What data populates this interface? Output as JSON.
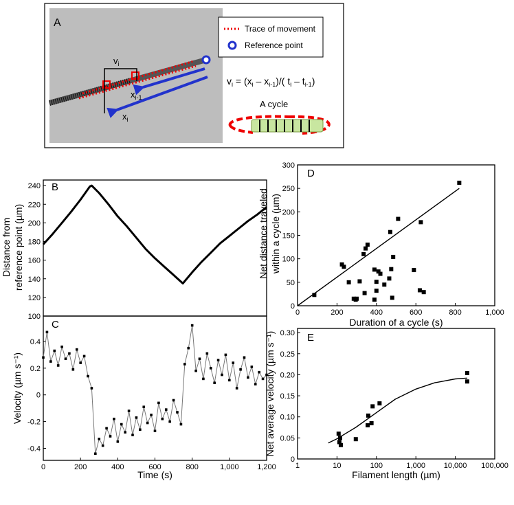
{
  "panel_a": {
    "label": "A",
    "legend": [
      "Trace of movement",
      "Reference point"
    ],
    "equation": [
      "v",
      "i",
      " = (x",
      "i",
      " – x",
      "i-1",
      ")/( t",
      "i",
      " – t",
      "i-1",
      ")"
    ],
    "cycle_label": "A cycle",
    "v_label": [
      "v",
      "i"
    ],
    "x_prev_label": [
      "x",
      "i-1"
    ],
    "x_label": [
      "x",
      "i"
    ]
  },
  "chart_data": [
    {
      "type": "line",
      "panel": "B",
      "ylabel": [
        "Distance from",
        "reference point (µm)"
      ],
      "color": "#000000",
      "x": [
        0,
        50,
        100,
        150,
        200,
        250,
        260,
        300,
        350,
        400,
        450,
        500,
        550,
        600,
        650,
        700,
        750,
        800,
        850,
        900,
        950,
        1000,
        1050,
        1100,
        1150,
        1200
      ],
      "values": [
        177,
        188,
        200,
        212,
        225,
        239,
        240,
        232,
        220,
        207,
        196,
        184,
        172,
        162,
        153,
        144,
        135,
        147,
        158,
        168,
        178,
        186,
        194,
        202,
        209,
        217
      ],
      "xlim": [
        0,
        1200
      ],
      "ylim": [
        100,
        246
      ],
      "yticks": [
        100,
        120,
        140,
        160,
        180,
        200,
        220,
        240
      ]
    },
    {
      "type": "line",
      "panel": "C",
      "markers": true,
      "ylabel": [
        "Velocity (µm s⁻¹)"
      ],
      "xlabel": "Time (s)",
      "color": "#777777",
      "marker_color": "#000000",
      "x": [
        0,
        20,
        40,
        60,
        80,
        100,
        120,
        140,
        160,
        180,
        200,
        220,
        240,
        260,
        280,
        300,
        320,
        340,
        360,
        380,
        400,
        420,
        440,
        460,
        480,
        500,
        520,
        540,
        560,
        580,
        600,
        620,
        640,
        660,
        680,
        700,
        720,
        740,
        760,
        780,
        800,
        820,
        840,
        860,
        880,
        900,
        920,
        940,
        960,
        980,
        1000,
        1020,
        1040,
        1060,
        1080,
        1100,
        1120,
        1140,
        1160,
        1180,
        1200
      ],
      "values": [
        0.28,
        0.47,
        0.25,
        0.33,
        0.22,
        0.36,
        0.27,
        0.31,
        0.19,
        0.34,
        0.24,
        0.29,
        0.14,
        0.05,
        -0.44,
        -0.33,
        -0.38,
        -0.25,
        -0.31,
        -0.18,
        -0.35,
        -0.22,
        -0.28,
        -0.12,
        -0.3,
        -0.17,
        -0.26,
        -0.09,
        -0.21,
        -0.15,
        -0.27,
        -0.06,
        -0.18,
        -0.11,
        -0.2,
        -0.04,
        -0.13,
        -0.22,
        0.23,
        0.35,
        0.52,
        0.18,
        0.27,
        0.12,
        0.31,
        0.2,
        0.09,
        0.26,
        0.15,
        0.3,
        0.11,
        0.24,
        0.05,
        0.19,
        0.28,
        0.13,
        0.21,
        0.08,
        0.17,
        0.12,
        0.15
      ],
      "xlim": [
        0,
        1200
      ],
      "ylim": [
        -0.49,
        0.59
      ],
      "xticks": [
        0,
        200,
        400,
        600,
        800,
        {
          "value": 1000,
          "label": "1,000"
        },
        {
          "value": 1200,
          "label": "1,200"
        }
      ],
      "yticks": [
        -0.4,
        -0.2,
        0,
        0.2,
        0.4
      ]
    },
    {
      "type": "scatter",
      "panel": "D",
      "ylabel": [
        "Net distance traveled",
        "within a cycle (µm)"
      ],
      "xlabel": "Duration of a cycle (s)",
      "color": "#000000",
      "x": [
        85,
        225,
        235,
        260,
        285,
        295,
        300,
        315,
        335,
        345,
        355,
        340,
        390,
        390,
        400,
        400,
        410,
        420,
        440,
        465,
        470,
        475,
        480,
        485,
        510,
        590,
        620,
        625,
        640,
        820
      ],
      "values": [
        23,
        88,
        83,
        50,
        15,
        13,
        15,
        52,
        110,
        122,
        130,
        27,
        13,
        77,
        51,
        32,
        73,
        68,
        45,
        58,
        157,
        78,
        17,
        104,
        185,
        76,
        33,
        178,
        29,
        262
      ],
      "fit": {
        "x": [
          0,
          820
        ],
        "values": [
          0,
          250
        ]
      },
      "xlim": [
        0,
        1000
      ],
      "ylim": [
        0,
        300
      ],
      "xticks": [
        0,
        200,
        400,
        600,
        800,
        {
          "value": 1000,
          "label": "1,000"
        }
      ],
      "yticks": [
        0,
        50,
        100,
        150,
        200,
        250,
        300
      ]
    },
    {
      "type": "scatter",
      "panel": "E",
      "log_x": true,
      "ylabel": [
        "Net average velocity (µm s⁻¹)"
      ],
      "xlabel": "Filament length (µm)",
      "color": "#000000",
      "x": [
        11,
        11.5,
        12,
        12.5,
        30,
        60,
        62,
        75,
        80,
        120,
        20000,
        20000
      ],
      "values": [
        0.06,
        0.04,
        0.05,
        0.033,
        0.047,
        0.08,
        0.103,
        0.085,
        0.125,
        0.132,
        0.204,
        0.184
      ],
      "fit": {
        "x": [
          6,
          10,
          30,
          100,
          300,
          1000,
          3000,
          10000,
          20000
        ],
        "values": [
          0.038,
          0.048,
          0.075,
          0.11,
          0.142,
          0.166,
          0.181,
          0.19,
          0.192
        ]
      },
      "xlim": [
        1,
        100000
      ],
      "ylim": [
        0,
        0.31
      ],
      "xticks": [
        1,
        10,
        100,
        {
          "value": 1000,
          "label": "1,000"
        },
        {
          "value": 10000,
          "label": "10,000"
        },
        {
          "value": 100000,
          "label": "100,000"
        }
      ],
      "yticks": [
        0,
        0.05,
        {
          "value": 0.1,
          "label": "0.10"
        },
        0.15,
        {
          "value": 0.2,
          "label": "0.20"
        },
        0.25,
        {
          "value": 0.3,
          "label": "0.30"
        }
      ]
    }
  ]
}
